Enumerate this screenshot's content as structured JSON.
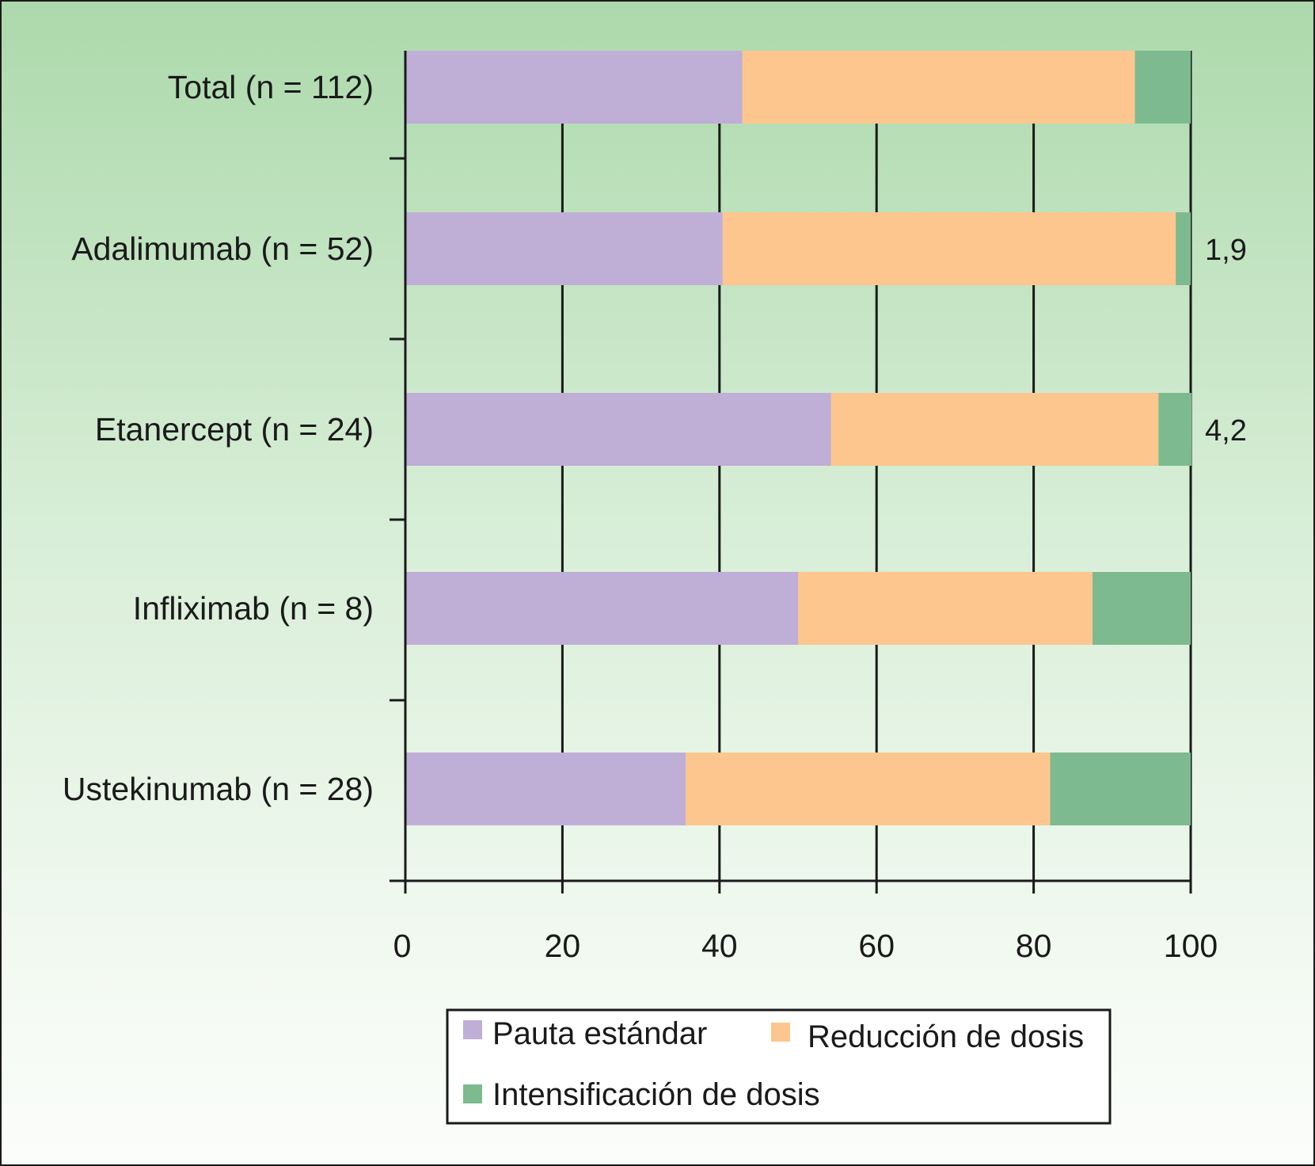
{
  "chart_data": {
    "type": "bar",
    "orientation": "horizontal",
    "stacked": true,
    "categories": [
      "Total (n = 112)",
      "Adalimumab (n = 52)",
      "Etanercept (n = 24)",
      "Infliximab (n = 8)",
      "Ustekinumab (n = 28)"
    ],
    "series": [
      {
        "name": "Pauta estándar",
        "color": "#bfaed6",
        "values": [
          42.9,
          40.4,
          54.2,
          50.0,
          35.7
        ]
      },
      {
        "name": "Reducción de dosis",
        "color": "#fcc68e",
        "values": [
          50.0,
          57.7,
          41.7,
          37.5,
          46.4
        ]
      },
      {
        "name": "Intensificación de dosis",
        "color": "#7dba8f",
        "values": [
          7.1,
          1.9,
          4.2,
          12.5,
          17.9
        ]
      }
    ],
    "xlim": [
      0,
      100
    ],
    "xticks": [
      "0",
      "20",
      "40",
      "60",
      "80",
      "100"
    ],
    "data_labels": [
      {
        "category": "Adalimumab (n = 52)",
        "text": "1,9"
      },
      {
        "category": "Etanercept (n = 24)",
        "text": "4,2"
      }
    ],
    "title": "",
    "xlabel": "",
    "ylabel": "",
    "grid": "vertical",
    "legend_position": "bottom"
  }
}
